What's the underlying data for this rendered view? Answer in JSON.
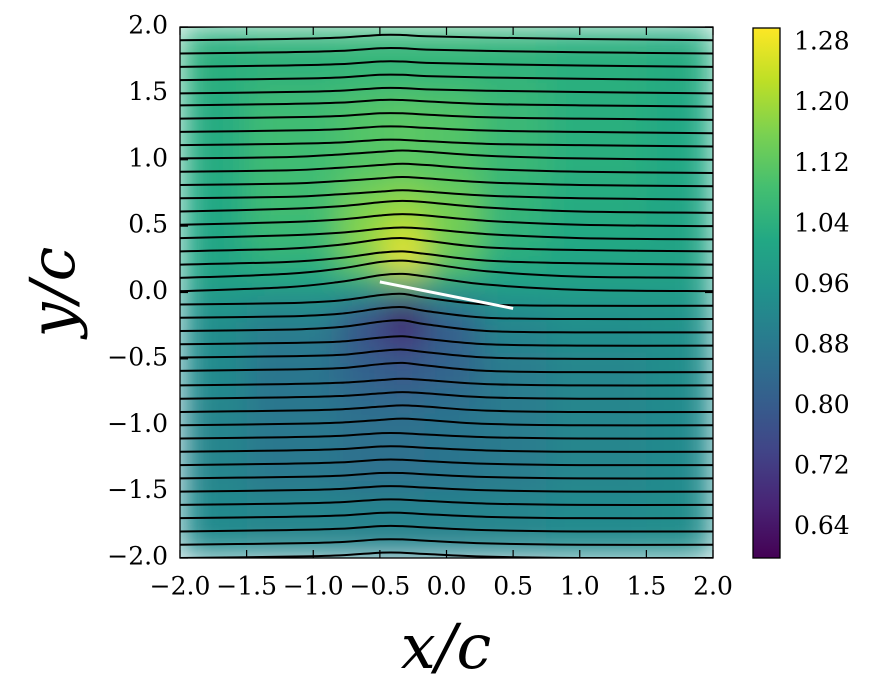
{
  "chart_data": {
    "type": "heatmap",
    "xlabel": "x/c",
    "ylabel": "y/c",
    "colormap": "viridis",
    "clim": [
      0.6,
      1.3
    ],
    "colorbar_ticks": [
      0.64,
      0.72,
      {
        "value": 0.8,
        "label": "0.80"
      },
      0.88,
      0.96,
      1.04,
      1.12,
      {
        "value": 1.2,
        "label": "1.20"
      },
      1.28
    ],
    "xlim": [
      -2,
      2
    ],
    "ylim": [
      -2,
      2
    ],
    "xticks": [
      {
        "value": -2,
        "label": "−2.0"
      },
      {
        "value": -1.5,
        "label": "−1.5"
      },
      {
        "value": -1,
        "label": "−1.0"
      },
      {
        "value": -0.5,
        "label": "−0.5"
      },
      {
        "value": 0,
        "label": "0.0"
      },
      0.5,
      {
        "value": 1,
        "label": "1.0"
      },
      1.5,
      {
        "value": 2,
        "label": "2.0"
      }
    ],
    "yticks": [
      {
        "value": 2,
        "label": "2.0"
      },
      1.5,
      {
        "value": 1,
        "label": "1.0"
      },
      0.5,
      {
        "value": 0,
        "label": "0.0"
      },
      {
        "value": -0.5,
        "label": "−0.5"
      },
      {
        "value": -1,
        "label": "−1.0"
      },
      {
        "value": -1.5,
        "label": "−1.5"
      },
      {
        "value": -2,
        "label": "−2.0"
      }
    ],
    "x": [
      -2,
      -1,
      -0.6,
      -0.33,
      0,
      0.5,
      1,
      2
    ],
    "y": [
      2,
      1,
      0.6,
      0.4,
      0.25,
      0.1,
      0,
      -0.15,
      -0.3,
      -0.6,
      -1,
      -2
    ],
    "z": [
      [
        1.04,
        1.05,
        1.06,
        1.06,
        1.06,
        1.05,
        1.04,
        1.03
      ],
      [
        1.03,
        1.08,
        1.11,
        1.12,
        1.11,
        1.07,
        1.04,
        1.02
      ],
      [
        1.02,
        1.08,
        1.16,
        1.19,
        1.15,
        1.06,
        1.03,
        1.01
      ],
      [
        1.01,
        1.07,
        1.18,
        1.26,
        1.15,
        1.05,
        1.02,
        1.01
      ],
      [
        1.01,
        1.05,
        1.16,
        1.3,
        1.13,
        1.03,
        1.01,
        1.0
      ],
      [
        1.0,
        1.01,
        1.05,
        1.14,
        1.04,
        1.01,
        1.0,
        1.0
      ],
      [
        0.98,
        0.97,
        0.93,
        0.84,
        0.94,
        0.97,
        0.98,
        0.98
      ],
      [
        0.95,
        0.91,
        0.8,
        0.62,
        0.83,
        0.93,
        0.95,
        0.96
      ],
      [
        0.94,
        0.89,
        0.78,
        0.7,
        0.81,
        0.91,
        0.94,
        0.95
      ],
      [
        0.93,
        0.87,
        0.82,
        0.8,
        0.83,
        0.89,
        0.92,
        0.94
      ],
      [
        0.92,
        0.88,
        0.86,
        0.86,
        0.87,
        0.89,
        0.92,
        0.93
      ],
      [
        0.93,
        0.92,
        0.91,
        0.91,
        0.91,
        0.92,
        0.93,
        0.94
      ]
    ],
    "streamlines": {
      "color": "#000000",
      "x": [
        -2,
        -1.2,
        -0.8,
        -0.5,
        -0.33,
        -0.15,
        0.3,
        1,
        2
      ],
      "y": [
        [
          2,
          2.01,
          2.02,
          2.04,
          2.04,
          2.03,
          2.02,
          2.01,
          2
        ],
        [
          1.9,
          1.91,
          1.92,
          1.94,
          1.94,
          1.93,
          1.92,
          1.91,
          1.9
        ],
        [
          1.8,
          1.81,
          1.82,
          1.84,
          1.84,
          1.83,
          1.82,
          1.81,
          1.8
        ],
        [
          1.7,
          1.71,
          1.72,
          1.74,
          1.74,
          1.73,
          1.72,
          1.71,
          1.7
        ],
        [
          1.6,
          1.61,
          1.62,
          1.64,
          1.64,
          1.63,
          1.62,
          1.61,
          1.6
        ],
        [
          1.5,
          1.51,
          1.52,
          1.54,
          1.54,
          1.53,
          1.52,
          1.51,
          1.5
        ],
        [
          1.41,
          1.42,
          1.43,
          1.45,
          1.45,
          1.44,
          1.42,
          1.41,
          1.4
        ],
        [
          1.31,
          1.32,
          1.33,
          1.35,
          1.35,
          1.34,
          1.32,
          1.31,
          1.3
        ],
        [
          1.21,
          1.22,
          1.23,
          1.25,
          1.25,
          1.24,
          1.22,
          1.21,
          1.2
        ],
        [
          1.11,
          1.12,
          1.13,
          1.15,
          1.15,
          1.14,
          1.12,
          1.11,
          1.1
        ],
        [
          1.01,
          1.02,
          1.04,
          1.06,
          1.07,
          1.06,
          1.03,
          1.01,
          1
        ],
        [
          0.91,
          0.92,
          0.94,
          0.96,
          0.97,
          0.96,
          0.93,
          0.91,
          0.9
        ],
        [
          0.81,
          0.82,
          0.84,
          0.86,
          0.87,
          0.86,
          0.83,
          0.81,
          0.8
        ],
        [
          0.71,
          0.72,
          0.74,
          0.76,
          0.77,
          0.76,
          0.73,
          0.71,
          0.7
        ],
        [
          0.61,
          0.63,
          0.65,
          0.68,
          0.69,
          0.68,
          0.64,
          0.61,
          0.6
        ],
        [
          0.51,
          0.53,
          0.55,
          0.58,
          0.59,
          0.58,
          0.54,
          0.51,
          0.5
        ],
        [
          0.41,
          0.43,
          0.45,
          0.48,
          0.49,
          0.48,
          0.44,
          0.41,
          0.4
        ],
        [
          0.31,
          0.33,
          0.36,
          0.4,
          0.41,
          0.39,
          0.34,
          0.32,
          0.31
        ],
        [
          0.21,
          0.23,
          0.26,
          0.3,
          0.31,
          0.29,
          0.24,
          0.22,
          0.21
        ],
        [
          0.11,
          0.14,
          0.18,
          0.23,
          0.24,
          0.22,
          0.16,
          0.12,
          0.11
        ],
        [
          0.01,
          0.04,
          0.08,
          0.13,
          0.14,
          0.12,
          0.06,
          0.02,
          0.01
        ],
        [
          -0.09,
          -0.08,
          -0.06,
          -0.02,
          -0.01,
          -0.04,
          -0.09,
          -0.1,
          -0.1
        ],
        [
          -0.19,
          -0.18,
          -0.16,
          -0.12,
          -0.11,
          -0.14,
          -0.19,
          -0.2,
          -0.2
        ],
        [
          -0.29,
          -0.28,
          -0.26,
          -0.22,
          -0.21,
          -0.24,
          -0.29,
          -0.3,
          -0.3
        ],
        [
          -0.39,
          -0.38,
          -0.37,
          -0.34,
          -0.33,
          -0.35,
          -0.39,
          -0.4,
          -0.4
        ],
        [
          -0.49,
          -0.48,
          -0.47,
          -0.44,
          -0.43,
          -0.45,
          -0.49,
          -0.5,
          -0.5
        ],
        [
          -0.59,
          -0.58,
          -0.57,
          -0.54,
          -0.53,
          -0.55,
          -0.59,
          -0.6,
          -0.6
        ],
        [
          -0.7,
          -0.69,
          -0.68,
          -0.66,
          -0.65,
          -0.66,
          -0.69,
          -0.7,
          -0.7
        ],
        [
          -0.8,
          -0.79,
          -0.78,
          -0.76,
          -0.75,
          -0.76,
          -0.79,
          -0.8,
          -0.8
        ],
        [
          -0.9,
          -0.89,
          -0.88,
          -0.86,
          -0.85,
          -0.86,
          -0.89,
          -0.9,
          -0.9
        ],
        [
          -1,
          -0.99,
          -0.98,
          -0.96,
          -0.95,
          -0.96,
          -0.99,
          -1,
          -1
        ],
        [
          -1.1,
          -1.09,
          -1.08,
          -1.06,
          -1.06,
          -1.07,
          -1.09,
          -1.1,
          -1.1
        ],
        [
          -1.2,
          -1.19,
          -1.18,
          -1.16,
          -1.16,
          -1.17,
          -1.19,
          -1.2,
          -1.2
        ],
        [
          -1.3,
          -1.29,
          -1.28,
          -1.26,
          -1.26,
          -1.27,
          -1.29,
          -1.3,
          -1.3
        ],
        [
          -1.4,
          -1.39,
          -1.38,
          -1.36,
          -1.36,
          -1.37,
          -1.39,
          -1.4,
          -1.4
        ],
        [
          -1.5,
          -1.49,
          -1.48,
          -1.46,
          -1.46,
          -1.47,
          -1.49,
          -1.5,
          -1.5
        ],
        [
          -1.6,
          -1.59,
          -1.58,
          -1.56,
          -1.56,
          -1.57,
          -1.59,
          -1.6,
          -1.6
        ],
        [
          -1.7,
          -1.69,
          -1.68,
          -1.66,
          -1.66,
          -1.67,
          -1.69,
          -1.7,
          -1.7
        ],
        [
          -1.8,
          -1.79,
          -1.78,
          -1.76,
          -1.76,
          -1.77,
          -1.79,
          -1.8,
          -1.8
        ],
        [
          -1.9,
          -1.89,
          -1.88,
          -1.86,
          -1.86,
          -1.87,
          -1.89,
          -1.9,
          -1.9
        ],
        [
          -2,
          -1.99,
          -1.98,
          -1.96,
          -1.96,
          -1.97,
          -1.99,
          -2,
          -2
        ]
      ]
    },
    "plate": {
      "x": [
        -0.5,
        0.5
      ],
      "y": [
        0.08,
        -0.12
      ],
      "color": "#ffffff"
    }
  }
}
